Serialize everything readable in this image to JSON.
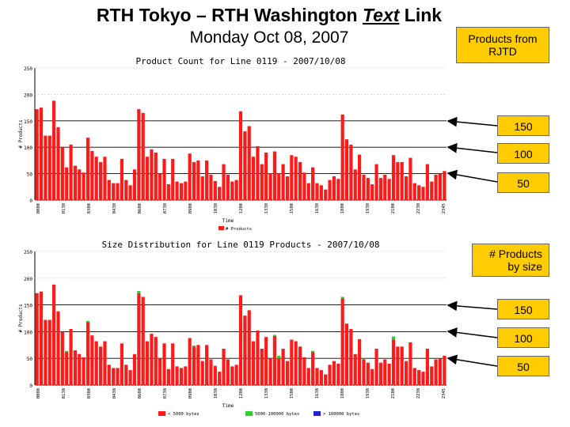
{
  "slide": {
    "title_part1": "RTH Tokyo – RTH Washington ",
    "title_italic": "Text",
    "title_part2": " Link",
    "subtitle": "Monday Oct 08, 2007"
  },
  "callouts": {
    "header_top": "Products from RJTD",
    "header_bottom": "# Products by size",
    "top_150": "150",
    "top_100": "100",
    "top_50": "50",
    "bottom_150": "150",
    "bottom_100": "100",
    "bottom_50": "50"
  },
  "colors": {
    "bar_red": "#ff1a1a",
    "bar_green": "#33cc33",
    "bar_blue": "#2222cc",
    "callout_fill": "#ffcc00"
  },
  "chart_data": [
    {
      "type": "bar",
      "title": "Product Count for Line 0119 - 2007/10/08",
      "xlabel": "Time",
      "ylabel": "# Products",
      "ylim": [
        0,
        250
      ],
      "yticks": [
        0,
        50,
        100,
        150,
        200,
        250
      ],
      "xticks": [
        "0000",
        "0130",
        "0300",
        "0430",
        "0600",
        "0730",
        "0900",
        "1030",
        "1200",
        "1330",
        "1500",
        "1630",
        "1800",
        "1930",
        "2100",
        "2230",
        "2345"
      ],
      "legend": [
        "# Products"
      ],
      "legend_position": "bottom",
      "reference_lines": [
        50,
        100,
        150
      ],
      "series": [
        {
          "name": "# Products",
          "values": [
            172,
            175,
            122,
            122,
            188,
            138,
            100,
            62,
            105,
            65,
            58,
            52,
            118,
            93,
            82,
            72,
            82,
            38,
            32,
            32,
            78,
            38,
            28,
            58,
            172,
            165,
            82,
            96,
            90,
            50,
            78,
            30,
            78,
            35,
            32,
            35,
            88,
            72,
            75,
            45,
            75,
            48,
            36,
            25,
            68,
            48,
            35,
            38,
            168,
            130,
            140,
            82,
            102,
            68,
            90,
            50,
            92,
            50,
            68,
            45,
            85,
            82,
            72,
            52,
            32,
            62,
            32,
            28,
            20,
            38,
            45,
            40,
            162,
            115,
            105,
            58,
            86,
            48,
            42,
            30,
            68,
            42,
            48,
            40,
            85,
            72,
            72,
            45,
            80,
            32,
            28,
            25,
            68,
            35,
            48,
            50,
            55
          ]
        }
      ]
    },
    {
      "type": "bar",
      "title": "Size Distribution for Line 0119 Products - 2007/10/08",
      "xlabel": "Time",
      "ylabel": "# Products",
      "ylim": [
        0,
        250
      ],
      "yticks": [
        0,
        50,
        100,
        150,
        200,
        250
      ],
      "xticks": [
        "0000",
        "0130",
        "0300",
        "0430",
        "0600",
        "0730",
        "0900",
        "1030",
        "1200",
        "1330",
        "1500",
        "1630",
        "1800",
        "1930",
        "2100",
        "2230",
        "2345"
      ],
      "legend": [
        "< 5000 bytes",
        "5000-100000 bytes",
        "> 100000 bytes"
      ],
      "legend_position": "bottom",
      "reference_lines": [
        50,
        100,
        150
      ],
      "series": [
        {
          "name": "< 5000 bytes",
          "values": [
            172,
            175,
            122,
            122,
            188,
            138,
            100,
            62,
            105,
            65,
            58,
            52,
            118,
            93,
            82,
            72,
            82,
            38,
            32,
            32,
            78,
            38,
            28,
            58,
            172,
            165,
            82,
            96,
            90,
            50,
            78,
            30,
            78,
            35,
            32,
            35,
            88,
            72,
            75,
            45,
            75,
            48,
            36,
            25,
            68,
            48,
            35,
            38,
            168,
            130,
            140,
            82,
            102,
            68,
            90,
            50,
            92,
            50,
            68,
            45,
            85,
            82,
            72,
            52,
            32,
            62,
            32,
            28,
            20,
            38,
            45,
            40,
            162,
            115,
            105,
            58,
            86,
            48,
            42,
            30,
            68,
            42,
            48,
            40,
            85,
            72,
            72,
            45,
            80,
            32,
            28,
            25,
            68,
            35,
            48,
            50,
            55
          ]
        },
        {
          "name": "5000-100000 bytes",
          "values": [
            0,
            0,
            0,
            0,
            0,
            0,
            0,
            2,
            0,
            0,
            0,
            0,
            2,
            0,
            0,
            0,
            0,
            0,
            0,
            0,
            0,
            0,
            0,
            0,
            4,
            0,
            0,
            0,
            0,
            0,
            0,
            0,
            0,
            0,
            0,
            0,
            0,
            2,
            0,
            0,
            0,
            0,
            0,
            0,
            0,
            0,
            0,
            0,
            0,
            0,
            0,
            0,
            0,
            0,
            0,
            0,
            2,
            5,
            0,
            0,
            0,
            0,
            0,
            0,
            0,
            2,
            0,
            0,
            0,
            0,
            0,
            0,
            3,
            0,
            0,
            0,
            0,
            2,
            0,
            0,
            0,
            0,
            0,
            0,
            6,
            0,
            0,
            0,
            0,
            0,
            0,
            0,
            0,
            0,
            0,
            0,
            0
          ]
        },
        {
          "name": "> 100000 bytes",
          "values": [
            0,
            0,
            0,
            0,
            0,
            0,
            0,
            0,
            0,
            0,
            0,
            0,
            0,
            0,
            0,
            0,
            0,
            0,
            0,
            0,
            0,
            0,
            0,
            0,
            0,
            0,
            0,
            0,
            0,
            0,
            0,
            0,
            0,
            0,
            0,
            0,
            0,
            0,
            0,
            0,
            0,
            0,
            0,
            0,
            0,
            0,
            0,
            0,
            0,
            0,
            0,
            0,
            0,
            0,
            0,
            0,
            0,
            0,
            0,
            0,
            0,
            0,
            0,
            0,
            0,
            0,
            0,
            0,
            0,
            0,
            0,
            0,
            0,
            0,
            0,
            0,
            0,
            0,
            0,
            0,
            0,
            0,
            0,
            0,
            0,
            0,
            0,
            0,
            0,
            0,
            0,
            0,
            0,
            0,
            0,
            0,
            0
          ]
        }
      ]
    }
  ]
}
